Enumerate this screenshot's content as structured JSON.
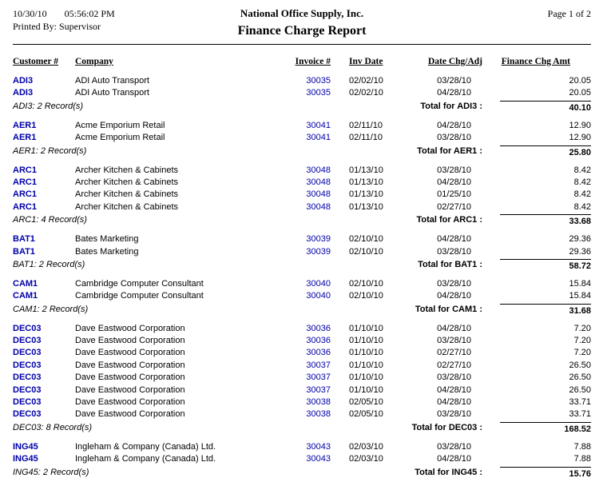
{
  "header": {
    "date": "10/30/10",
    "time": "05:56:02 PM",
    "printed_by": "Printed By: Supervisor",
    "company_name": "National Office Supply, Inc.",
    "report_title": "Finance Charge Report",
    "page": "Page 1 of  2"
  },
  "colors": {
    "link": "#0000aa",
    "text": "#000000",
    "background": "#ffffff"
  },
  "columns": [
    "Customer #",
    "Company",
    "Invoice #",
    "Inv Date",
    "Date Chg/Adj",
    "Finance Chg Amt"
  ],
  "groups": [
    {
      "records_label": "ADI3: 2 Record(s)",
      "total_label": "Total for ADI3 :",
      "total_amount": "40.10",
      "rows": [
        {
          "customer": "ADI3",
          "company": "ADI Auto Transport",
          "invoice": "30035",
          "inv_date": "02/02/10",
          "date_chg": "03/28/10",
          "amount": "20.05"
        },
        {
          "customer": "ADI3",
          "company": "ADI Auto Transport",
          "invoice": "30035",
          "inv_date": "02/02/10",
          "date_chg": "04/28/10",
          "amount": "20.05"
        }
      ]
    },
    {
      "records_label": "AER1: 2 Record(s)",
      "total_label": "Total for AER1 :",
      "total_amount": "25.80",
      "rows": [
        {
          "customer": "AER1",
          "company": "Acme Emporium Retail",
          "invoice": "30041",
          "inv_date": "02/11/10",
          "date_chg": "04/28/10",
          "amount": "12.90"
        },
        {
          "customer": "AER1",
          "company": "Acme Emporium Retail",
          "invoice": "30041",
          "inv_date": "02/11/10",
          "date_chg": "03/28/10",
          "amount": "12.90"
        }
      ]
    },
    {
      "records_label": "ARC1: 4 Record(s)",
      "total_label": "Total for ARC1 :",
      "total_amount": "33.68",
      "rows": [
        {
          "customer": "ARC1",
          "company": "Archer Kitchen & Cabinets",
          "invoice": "30048",
          "inv_date": "01/13/10",
          "date_chg": "03/28/10",
          "amount": "8.42"
        },
        {
          "customer": "ARC1",
          "company": "Archer Kitchen & Cabinets",
          "invoice": "30048",
          "inv_date": "01/13/10",
          "date_chg": "04/28/10",
          "amount": "8.42"
        },
        {
          "customer": "ARC1",
          "company": "Archer Kitchen & Cabinets",
          "invoice": "30048",
          "inv_date": "01/13/10",
          "date_chg": "01/25/10",
          "amount": "8.42"
        },
        {
          "customer": "ARC1",
          "company": "Archer Kitchen & Cabinets",
          "invoice": "30048",
          "inv_date": "01/13/10",
          "date_chg": "02/27/10",
          "amount": "8.42"
        }
      ]
    },
    {
      "records_label": "BAT1: 2 Record(s)",
      "total_label": "Total for BAT1 :",
      "total_amount": "58.72",
      "rows": [
        {
          "customer": "BAT1",
          "company": "Bates Marketing",
          "invoice": "30039",
          "inv_date": "02/10/10",
          "date_chg": "04/28/10",
          "amount": "29.36"
        },
        {
          "customer": "BAT1",
          "company": "Bates Marketing",
          "invoice": "30039",
          "inv_date": "02/10/10",
          "date_chg": "03/28/10",
          "amount": "29.36"
        }
      ]
    },
    {
      "records_label": "CAM1: 2 Record(s)",
      "total_label": "Total for CAM1 :",
      "total_amount": "31.68",
      "rows": [
        {
          "customer": "CAM1",
          "company": "Cambridge Computer Consultant",
          "invoice": "30040",
          "inv_date": "02/10/10",
          "date_chg": "03/28/10",
          "amount": "15.84"
        },
        {
          "customer": "CAM1",
          "company": "Cambridge Computer Consultant",
          "invoice": "30040",
          "inv_date": "02/10/10",
          "date_chg": "04/28/10",
          "amount": "15.84"
        }
      ]
    },
    {
      "records_label": "DEC03: 8 Record(s)",
      "total_label": "Total for DEC03 :",
      "total_amount": "168.52",
      "rows": [
        {
          "customer": "DEC03",
          "company": "Dave Eastwood Corporation",
          "invoice": "30036",
          "inv_date": "01/10/10",
          "date_chg": "04/28/10",
          "amount": "7.20"
        },
        {
          "customer": "DEC03",
          "company": "Dave Eastwood Corporation",
          "invoice": "30036",
          "inv_date": "01/10/10",
          "date_chg": "03/28/10",
          "amount": "7.20"
        },
        {
          "customer": "DEC03",
          "company": "Dave Eastwood Corporation",
          "invoice": "30036",
          "inv_date": "01/10/10",
          "date_chg": "02/27/10",
          "amount": "7.20"
        },
        {
          "customer": "DEC03",
          "company": "Dave Eastwood Corporation",
          "invoice": "30037",
          "inv_date": "01/10/10",
          "date_chg": "02/27/10",
          "amount": "26.50"
        },
        {
          "customer": "DEC03",
          "company": "Dave Eastwood Corporation",
          "invoice": "30037",
          "inv_date": "01/10/10",
          "date_chg": "03/28/10",
          "amount": "26.50"
        },
        {
          "customer": "DEC03",
          "company": "Dave Eastwood Corporation",
          "invoice": "30037",
          "inv_date": "01/10/10",
          "date_chg": "04/28/10",
          "amount": "26.50"
        },
        {
          "customer": "DEC03",
          "company": "Dave Eastwood Corporation",
          "invoice": "30038",
          "inv_date": "02/05/10",
          "date_chg": "04/28/10",
          "amount": "33.71"
        },
        {
          "customer": "DEC03",
          "company": "Dave Eastwood Corporation",
          "invoice": "30038",
          "inv_date": "02/05/10",
          "date_chg": "03/28/10",
          "amount": "33.71"
        }
      ]
    },
    {
      "records_label": "ING45: 2 Record(s)",
      "total_label": "Total for ING45 :",
      "total_amount": "15.76",
      "rows": [
        {
          "customer": "ING45",
          "company": "Ingleham & Company (Canada) Ltd.",
          "invoice": "30043",
          "inv_date": "02/03/10",
          "date_chg": "03/28/10",
          "amount": "7.88"
        },
        {
          "customer": "ING45",
          "company": "Ingleham & Company (Canada) Ltd.",
          "invoice": "30043",
          "inv_date": "02/03/10",
          "date_chg": "04/28/10",
          "amount": "7.88"
        }
      ]
    }
  ]
}
